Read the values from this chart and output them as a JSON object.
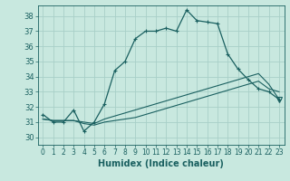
{
  "xlabel": "Humidex (Indice chaleur)",
  "background_color": "#c8e8df",
  "grid_color": "#a8cfc8",
  "line_color": "#1a6060",
  "x_ticks": [
    0,
    1,
    2,
    3,
    4,
    5,
    6,
    7,
    8,
    9,
    10,
    11,
    12,
    13,
    14,
    15,
    16,
    17,
    18,
    19,
    20,
    21,
    22,
    23
  ],
  "ylim": [
    29.5,
    38.7
  ],
  "xlim": [
    -0.5,
    23.5
  ],
  "y_ticks": [
    30,
    31,
    32,
    33,
    34,
    35,
    36,
    37,
    38
  ],
  "curve1_y": [
    31.5,
    31.0,
    31.0,
    31.8,
    30.4,
    31.0,
    32.2,
    34.4,
    35.0,
    36.5,
    37.0,
    37.0,
    37.2,
    37.0,
    38.4,
    37.7,
    37.6,
    37.5,
    35.5,
    34.5,
    33.8,
    33.2,
    33.0,
    32.5
  ],
  "curve2_y": [
    31.2,
    31.1,
    31.1,
    31.1,
    31.0,
    30.9,
    31.2,
    31.4,
    31.6,
    31.8,
    32.0,
    32.2,
    32.4,
    32.6,
    32.8,
    33.0,
    33.2,
    33.4,
    33.6,
    33.8,
    34.0,
    34.2,
    33.5,
    32.5
  ],
  "curve3_y": [
    31.2,
    31.1,
    31.1,
    31.1,
    30.9,
    30.8,
    31.0,
    31.1,
    31.2,
    31.3,
    31.5,
    31.7,
    31.9,
    32.1,
    32.3,
    32.5,
    32.7,
    32.9,
    33.1,
    33.3,
    33.5,
    33.7,
    33.2,
    33.0
  ],
  "tick_fontsize": 5.5,
  "xlabel_fontsize": 7
}
